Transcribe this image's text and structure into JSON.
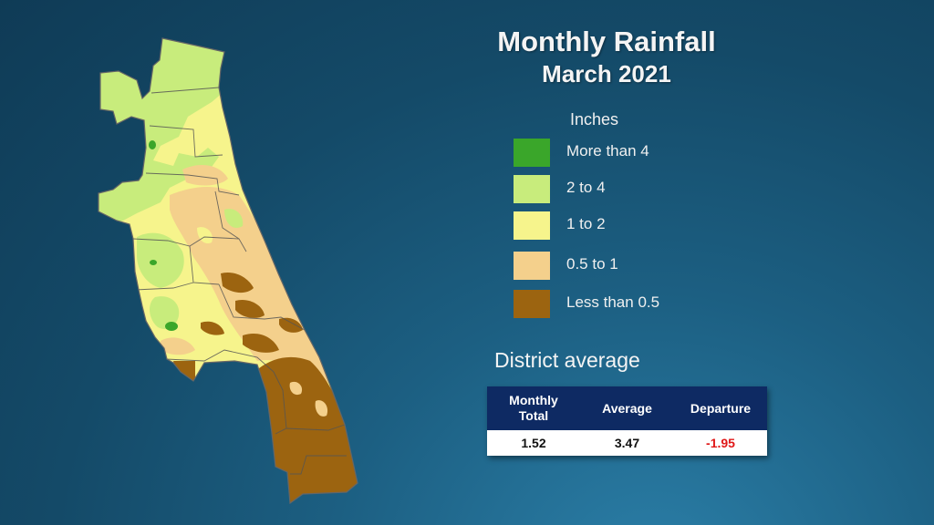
{
  "title": "Monthly Rainfall",
  "subtitle": "March 2021",
  "legend": {
    "units": "Inches",
    "items": [
      {
        "label": "More than 4",
        "color": "#3aa62a"
      },
      {
        "label": "2 to 4",
        "color": "#c8ec7c"
      },
      {
        "label": "1 to 2",
        "color": "#f6f48c"
      },
      {
        "label": "0.5 to 1",
        "color": "#f4d08c"
      },
      {
        "label": "Less than 0.5",
        "color": "#9c6410"
      }
    ]
  },
  "district": {
    "title": "District average",
    "headers": [
      "Monthly\nTotal",
      "Average",
      "Departure"
    ],
    "values": [
      "1.52",
      "3.47",
      "-1.95"
    ],
    "departure_color": "#e01818",
    "header_bg": "#0e2a63"
  }
}
